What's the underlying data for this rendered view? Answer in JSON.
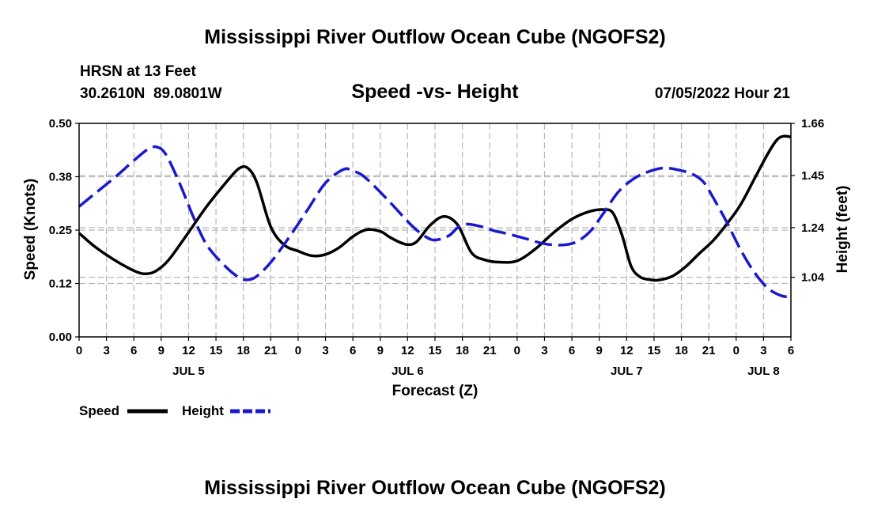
{
  "chart_data": {
    "type": "line",
    "title": "Mississippi River Outflow Ocean Cube (NGOFS2)",
    "footer_title": "Mississippi River Outflow Ocean Cube (NGOFS2)",
    "subtitle": "Speed -vs- Height",
    "station": "HRSN at 13 Feet",
    "coords": "30.2610N  89.0801W",
    "datetime": "07/05/2022 Hour 21",
    "xlabel": "Forecast (Z)",
    "ylabel_left": "Speed (Knots)",
    "ylabel_right": "Height (feet)",
    "x_hours_range": [
      0,
      78
    ],
    "x_tick_labels": [
      "0",
      "3",
      "6",
      "9",
      "12",
      "15",
      "18",
      "21",
      "0",
      "3",
      "6",
      "9",
      "12",
      "15",
      "18",
      "21",
      "0",
      "3",
      "6",
      "9",
      "12",
      "15",
      "18",
      "21",
      "0",
      "3",
      "6"
    ],
    "date_labels": [
      {
        "label": "JUL 5",
        "hour": 12
      },
      {
        "label": "JUL 6",
        "hour": 36
      },
      {
        "label": "JUL 7",
        "hour": 60
      },
      {
        "label": "JUL 8",
        "hour": 75
      }
    ],
    "ylim_left": [
      0,
      0.5
    ],
    "yticks_left": [
      "0.00",
      "0.12",
      "0.25",
      "0.38",
      "0.50"
    ],
    "ylim_right": [
      0.8,
      1.66
    ],
    "yticks_right": [
      {
        "label": "1.04",
        "value": 1.04
      },
      {
        "label": "1.24",
        "value": 1.24
      },
      {
        "label": "1.45",
        "value": 1.45
      },
      {
        "label": "1.66",
        "value": 1.66
      }
    ],
    "grid": true,
    "legend": [
      {
        "name": "Speed",
        "color": "#000000",
        "dash": "solid"
      },
      {
        "name": "Height",
        "color": "#1a1acc",
        "dash": "dashed"
      }
    ],
    "series": [
      {
        "name": "Speed",
        "axis": "left",
        "color": "#000000",
        "x": [
          0,
          1.5,
          3,
          4.5,
          6,
          7,
          8,
          9,
          10,
          12,
          14,
          16,
          17.5,
          18.5,
          19.5,
          21,
          22.5,
          24,
          25.5,
          27,
          28.5,
          30,
          31.5,
          33,
          34,
          35,
          36,
          37,
          38.5,
          40,
          41.5,
          43,
          44.5,
          46,
          48,
          50,
          52,
          54,
          56,
          57.5,
          58.5,
          59.5,
          60.5,
          61.5,
          62.5,
          63.5,
          65,
          66.5,
          68,
          69.5,
          71,
          72.5,
          74,
          75.5,
          76.5,
          77.25,
          78
        ],
        "values": [
          0.243,
          0.215,
          0.192,
          0.172,
          0.155,
          0.148,
          0.15,
          0.163,
          0.185,
          0.245,
          0.306,
          0.359,
          0.394,
          0.395,
          0.36,
          0.258,
          0.215,
          0.201,
          0.19,
          0.193,
          0.209,
          0.235,
          0.251,
          0.247,
          0.234,
          0.223,
          0.216,
          0.223,
          0.262,
          0.282,
          0.262,
          0.197,
          0.18,
          0.175,
          0.178,
          0.206,
          0.244,
          0.276,
          0.294,
          0.298,
          0.29,
          0.238,
          0.165,
          0.14,
          0.134,
          0.133,
          0.142,
          0.165,
          0.196,
          0.226,
          0.265,
          0.31,
          0.37,
          0.43,
          0.462,
          0.47,
          0.468
        ]
      },
      {
        "name": "Height",
        "axis": "right",
        "color": "#1a1acc",
        "x": [
          0,
          2,
          4,
          6,
          7.5,
          8.5,
          9.5,
          11,
          12.5,
          14,
          16,
          17.5,
          18.5,
          19.5,
          21,
          23,
          25,
          27,
          29,
          30,
          30.5,
          31,
          32,
          34,
          36,
          37,
          38,
          39,
          40.5,
          42,
          44,
          45.5,
          47,
          49,
          51,
          53,
          54.5,
          56,
          57.5,
          59,
          60.5,
          62,
          64,
          66,
          67.5,
          68.5,
          69.5,
          71,
          72.5,
          74,
          75.5,
          77,
          78
        ],
        "values": [
          1.325,
          1.385,
          1.445,
          1.51,
          1.555,
          1.565,
          1.535,
          1.42,
          1.285,
          1.17,
          1.085,
          1.04,
          1.03,
          1.045,
          1.1,
          1.2,
          1.31,
          1.42,
          1.475,
          1.468,
          1.462,
          1.452,
          1.42,
          1.345,
          1.265,
          1.23,
          1.203,
          1.19,
          1.207,
          1.252,
          1.245,
          1.227,
          1.215,
          1.195,
          1.175,
          1.17,
          1.183,
          1.225,
          1.3,
          1.38,
          1.43,
          1.46,
          1.48,
          1.47,
          1.45,
          1.42,
          1.36,
          1.26,
          1.15,
          1.06,
          0.995,
          0.965,
          0.962
        ]
      }
    ]
  }
}
